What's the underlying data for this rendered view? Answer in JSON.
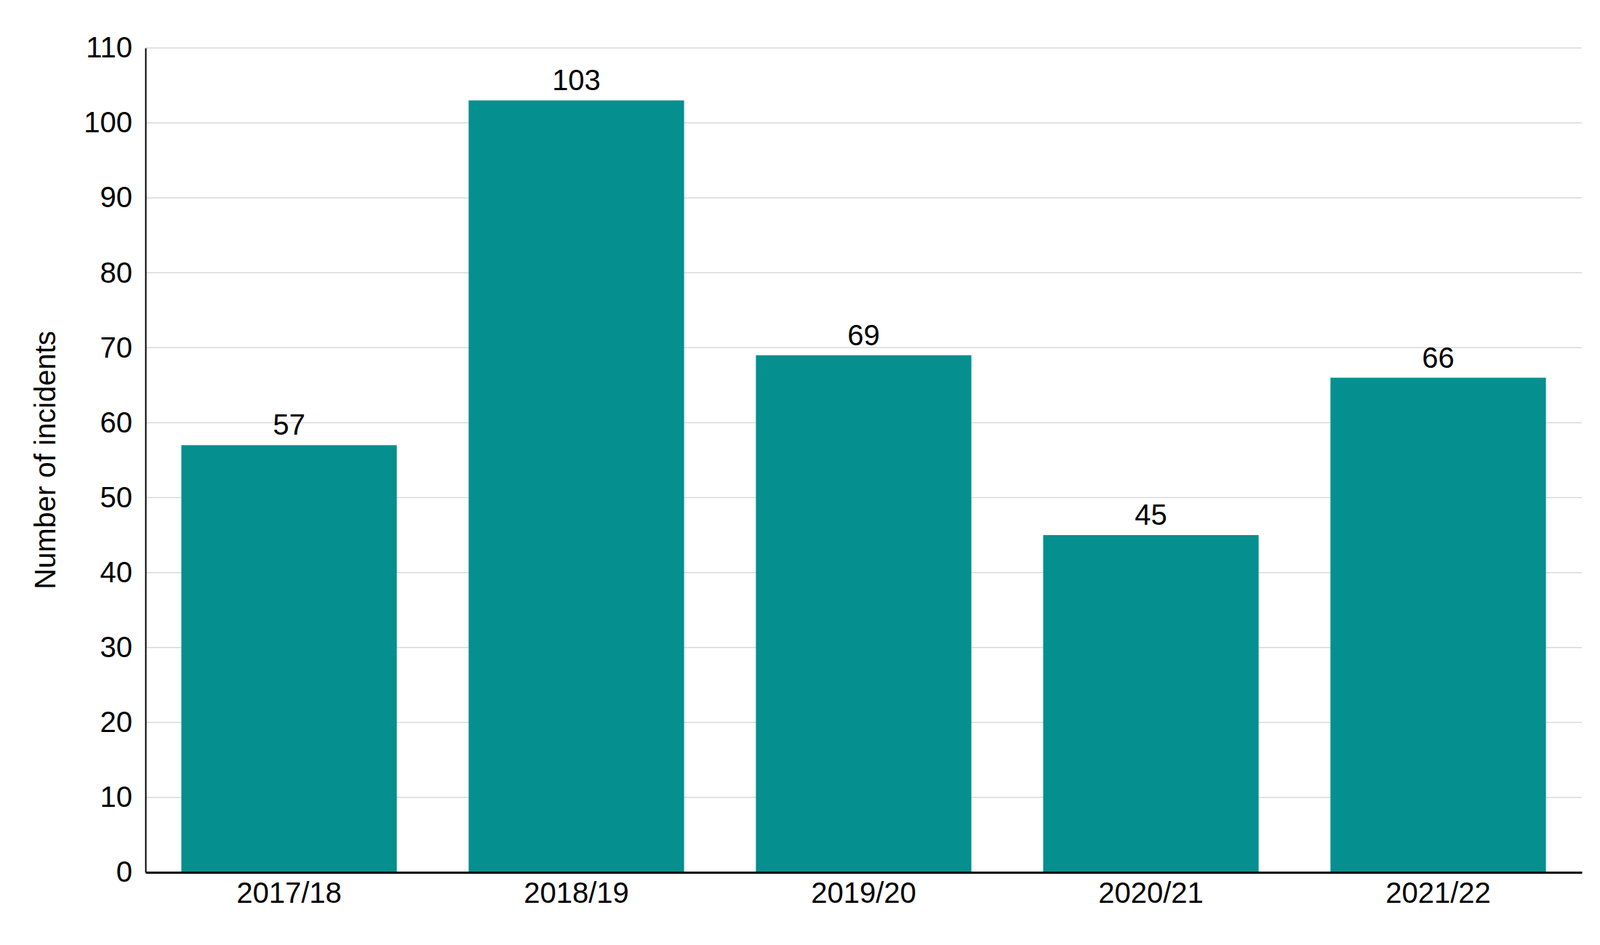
{
  "chart_data": {
    "type": "bar",
    "y_label": "Number of incidents",
    "categories": [
      "2017/18",
      "2018/19",
      "2019/20",
      "2020/21",
      "2021/22"
    ],
    "values": [
      57,
      103,
      69,
      45,
      66
    ],
    "color": "#058f8f",
    "ylim": [
      0,
      110
    ],
    "yticks": [
      0,
      10,
      20,
      30,
      40,
      50,
      60,
      70,
      80,
      90,
      100,
      110
    ],
    "grid": true,
    "data_labels": true
  }
}
